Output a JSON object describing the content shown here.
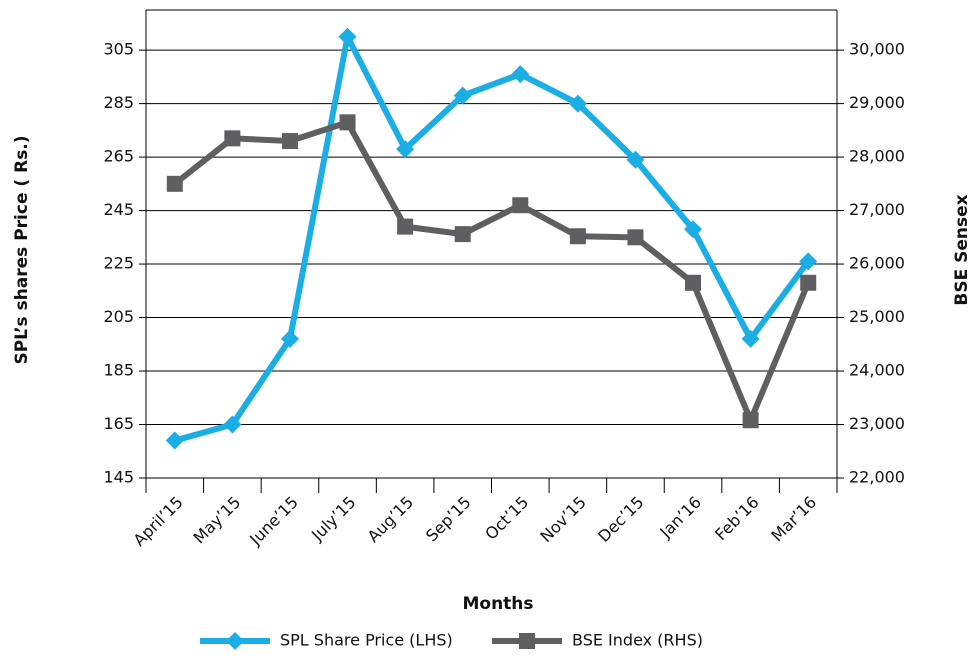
{
  "chart_data": {
    "type": "line",
    "x_label": "Months",
    "y_label": "SPL’s shares Price ( Rs.)",
    "y2_label": "BSE Sensex",
    "categories": [
      "April’15",
      "May’15",
      "June’15",
      "July’15",
      "Aug’15",
      "Sep’15",
      "Oct’15",
      "Nov’15",
      "Dec’15",
      "Jan’16",
      "Feb’16",
      "Mar’16"
    ],
    "series": [
      {
        "name": "SPL Share Price (LHS)",
        "color": "#1aaee5",
        "marker": "diamond",
        "values": [
          159,
          165,
          197,
          310,
          268,
          288,
          296,
          285,
          264,
          238,
          197,
          226
        ]
      },
      {
        "name": "BSE Index (RHS)",
        "color": "#5f5f61",
        "marker": "square",
        "axis": "y2",
        "values": [
          27500,
          28350,
          28300,
          28650,
          26700,
          26560,
          27100,
          26520,
          26500,
          25650,
          23080,
          25650
        ]
      }
    ],
    "ylim": [
      145,
      320
    ],
    "yticks": [
      145,
      165,
      185,
      205,
      225,
      245,
      265,
      285,
      305
    ],
    "y2lim": [
      22000,
      30750
    ],
    "y2ticks": [
      {
        "value": 22000,
        "label": "22,000"
      },
      {
        "value": 23000,
        "label": "23,000"
      },
      {
        "value": 24000,
        "label": "24,000"
      },
      {
        "value": 25000,
        "label": "25,000"
      },
      {
        "value": 26000,
        "label": "26,000"
      },
      {
        "value": 27000,
        "label": "27,000"
      },
      {
        "value": 28000,
        "label": "28,000"
      },
      {
        "value": 29000,
        "label": "29,000"
      },
      {
        "value": 30000,
        "label": "30,000"
      }
    ],
    "grid": true,
    "legend": "bottom"
  }
}
